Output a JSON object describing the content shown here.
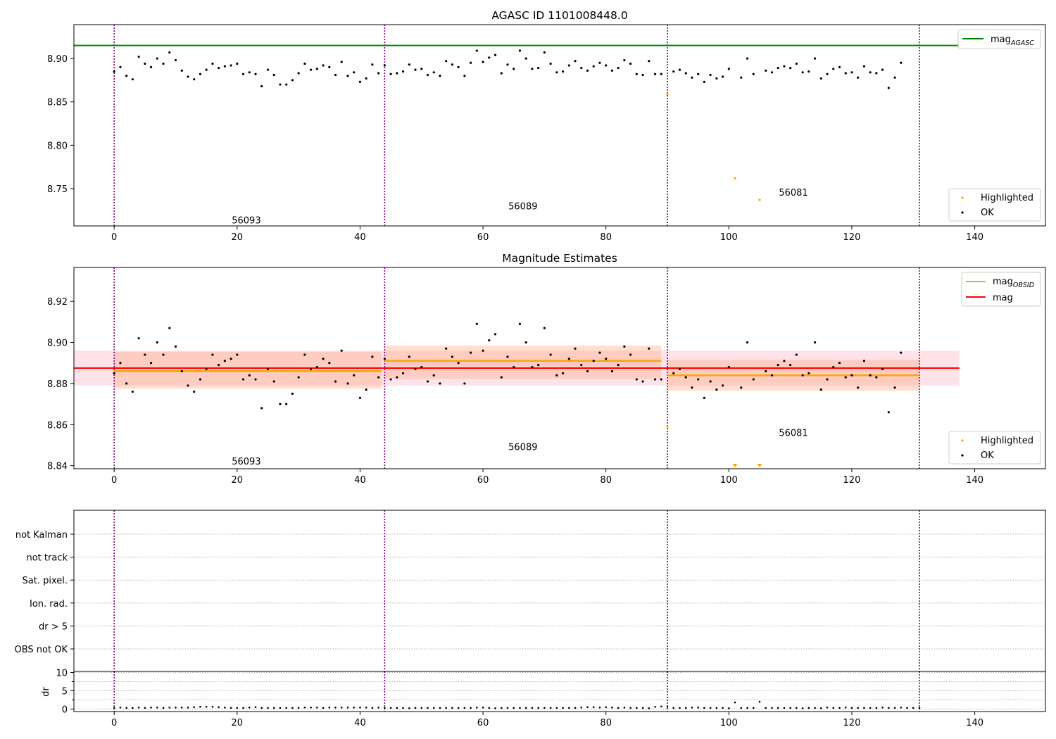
{
  "figure": {
    "title_top": "AGASC ID 1101008448.0",
    "title_mid": "Magnitude Estimates"
  },
  "colors": {
    "highlight": "#ffa500",
    "ok": "#000000",
    "mag_agasc": "#008000",
    "mag_obsid": "#ffa500",
    "mag": "#ff0000",
    "obs_boundary": "#800080",
    "band_outer": "#ffc0cb",
    "band_obsid": "#ffa07a",
    "grid": "#b0b0b0"
  },
  "chart_data": [
    {
      "name": "agasc",
      "type": "scatter",
      "title": "AGASC ID 1101008448.0",
      "xlim": [
        -6.55,
        151.5
      ],
      "ylim": [
        8.707,
        8.939
      ],
      "xticks": [
        0,
        20,
        40,
        60,
        80,
        100,
        120,
        140
      ],
      "yticks": [
        8.75,
        8.8,
        8.85,
        8.9
      ],
      "ytick_labels": [
        "8.75",
        "8.80",
        "8.85",
        "8.90"
      ],
      "obs_boundaries": [
        0,
        44,
        90,
        131
      ],
      "obsid_labels": [
        {
          "text": "56093",
          "x": 21.5,
          "y": 8.71
        },
        {
          "text": "56089",
          "x": 66.5,
          "y": 8.726
        },
        {
          "text": "56081",
          "x": 110.5,
          "y": 8.742
        }
      ],
      "hlines": [
        {
          "name": "mag_AGASC",
          "y": 8.915,
          "xmax": 137.5
        }
      ],
      "legend_upper": [
        "mag_AGASC"
      ],
      "legend_lower": [
        "Highlighted",
        "OK"
      ],
      "highlighted": [
        [
          90,
          8.859
        ],
        [
          101,
          8.762
        ],
        [
          105,
          8.737
        ]
      ],
      "ok_y": [
        8.885,
        8.89,
        8.88,
        8.876,
        8.902,
        8.894,
        8.89,
        8.9,
        8.894,
        8.907,
        8.898,
        8.886,
        8.879,
        8.876,
        8.882,
        8.887,
        8.894,
        8.889,
        8.891,
        8.892,
        8.894,
        8.882,
        8.884,
        8.882,
        8.868,
        8.887,
        8.881,
        8.87,
        8.87,
        8.875,
        8.883,
        8.894,
        8.887,
        8.888,
        8.892,
        8.89,
        8.881,
        8.896,
        8.88,
        8.884,
        8.873,
        8.877,
        8.893,
        8.883,
        8.892,
        8.882,
        8.883,
        8.885,
        8.893,
        8.887,
        8.888,
        8.881,
        8.884,
        8.88,
        8.897,
        8.893,
        8.89,
        8.88,
        8.895,
        8.909,
        8.896,
        8.901,
        8.904,
        8.883,
        8.893,
        8.888,
        8.909,
        8.9,
        8.888,
        8.889,
        8.907,
        8.894,
        8.884,
        8.885,
        8.892,
        8.897,
        8.889,
        8.886,
        8.891,
        8.895,
        8.892,
        8.886,
        8.889,
        8.898,
        8.894,
        8.882,
        8.881,
        8.897,
        8.882,
        8.882,
        8.889,
        8.885,
        8.887,
        8.883,
        8.878,
        8.882,
        8.873,
        8.881,
        8.877,
        8.879,
        8.888,
        8.887,
        8.878,
        8.9,
        8.882,
        8.885,
        8.886,
        8.884,
        8.889,
        8.891,
        8.889,
        8.894,
        8.884,
        8.885,
        8.9,
        8.877,
        8.882,
        8.888,
        8.89,
        8.883,
        8.884,
        8.878,
        8.891,
        8.884,
        8.883,
        8.887,
        8.866,
        8.878,
        8.895
      ],
      "ok_x_skip": [
        90,
        101,
        105
      ]
    },
    {
      "name": "mag_estimates",
      "type": "scatter",
      "title": "Magnitude Estimates",
      "xlim": [
        -6.55,
        151.5
      ],
      "ylim": [
        8.8385,
        8.9365
      ],
      "xticks": [
        0,
        20,
        40,
        60,
        80,
        100,
        120,
        140
      ],
      "yticks": [
        8.84,
        8.86,
        8.88,
        8.9,
        8.92
      ],
      "ytick_labels": [
        "8.84",
        "8.86",
        "8.88",
        "8.90",
        "8.92"
      ],
      "obs_boundaries": [
        0,
        44,
        90,
        131
      ],
      "obsid_labels": [
        {
          "text": "56093",
          "x": 21.5,
          "y": 8.8405
        },
        {
          "text": "56089",
          "x": 66.5,
          "y": 8.8475
        },
        {
          "text": "56081",
          "x": 110.5,
          "y": 8.8545
        }
      ],
      "mag": {
        "y": 8.8875,
        "band": [
          8.879,
          8.896
        ],
        "xmax": 137.5
      },
      "obsid_segments": [
        {
          "x0": 0,
          "x1": 43.5,
          "y": 8.886,
          "band": [
            8.8775,
            8.8955
          ]
        },
        {
          "x0": 44,
          "x1": 89,
          "y": 8.891,
          "band": [
            8.8825,
            8.8985
          ]
        },
        {
          "x0": 90,
          "x1": 131,
          "y": 8.884,
          "band": [
            8.8765,
            8.8915
          ]
        }
      ],
      "legend_upper": [
        "mag_OBSID",
        "mag"
      ],
      "legend_lower": [
        "Highlighted",
        "OK"
      ],
      "highlighted": [
        [
          90,
          8.859
        ]
      ],
      "out_of_range_markers": [
        101,
        105
      ]
    },
    {
      "name": "flags",
      "type": "scatter",
      "xlim": [
        -6.55,
        151.5
      ],
      "categories": [
        "not Kalman",
        "not track",
        "Sat. pixel.",
        "Ion. rad.",
        "dr > 5",
        "OBS not OK"
      ],
      "obs_boundaries": [
        0,
        44,
        90,
        131
      ]
    },
    {
      "name": "dr",
      "type": "scatter",
      "ylabel": "dr",
      "xlim": [
        -6.55,
        151.5
      ],
      "ylim": [
        -0.7,
        10.3
      ],
      "xticks": [
        0,
        20,
        40,
        60,
        80,
        100,
        120,
        140
      ],
      "yticks": [
        0,
        5,
        10
      ],
      "obs_boundaries": [
        0,
        44,
        90,
        131
      ],
      "values": [
        0.3,
        0.4,
        0.3,
        0.3,
        0.4,
        0.3,
        0.4,
        0.4,
        0.3,
        0.4,
        0.4,
        0.4,
        0.4,
        0.5,
        0.6,
        0.6,
        0.6,
        0.5,
        0.4,
        0.3,
        0.3,
        0.3,
        0.4,
        0.5,
        0.3,
        0.3,
        0.3,
        0.3,
        0.3,
        0.3,
        0.3,
        0.4,
        0.4,
        0.4,
        0.3,
        0.4,
        0.4,
        0.4,
        0.4,
        0.4,
        0.4,
        0.4,
        0.3,
        0.4,
        0.3,
        0.3,
        0.3,
        0.3,
        0.2,
        0.3,
        0.3,
        0.3,
        0.3,
        0.3,
        0.3,
        0.3,
        0.3,
        0.3,
        0.3,
        0.4,
        0.4,
        0.3,
        0.2,
        0.3,
        0.3,
        0.3,
        0.3,
        0.3,
        0.3,
        0.3,
        0.3,
        0.3,
        0.3,
        0.3,
        0.3,
        0.3,
        0.4,
        0.5,
        0.5,
        0.4,
        0.5,
        0.4,
        0.3,
        0.4,
        0.3,
        0.3,
        0.3,
        0.2,
        0.6,
        0.7,
        0.6,
        0.3,
        0.3,
        0.3,
        0.4,
        0.4,
        0.3,
        0.3,
        0.3,
        0.3,
        0.2,
        1.8,
        0.3,
        0.3,
        0.3,
        2.0,
        0.3,
        0.3,
        0.3,
        0.3,
        0.3,
        0.3,
        0.2,
        0.3,
        0.3,
        0.2,
        0.4,
        0.3,
        0.3,
        0.4,
        0.3,
        0.3,
        0.3,
        0.3,
        0.3,
        0.4,
        0.3,
        0.3,
        0.4,
        0.3,
        0.3,
        0.3
      ]
    }
  ],
  "legends": {
    "mag_agasc": {
      "base": "mag",
      "sub": "AGASC"
    },
    "mag_obsid": {
      "base": "mag",
      "sub": "OBSID"
    },
    "mag": "mag",
    "highlighted": "Highlighted",
    "ok": "OK"
  }
}
